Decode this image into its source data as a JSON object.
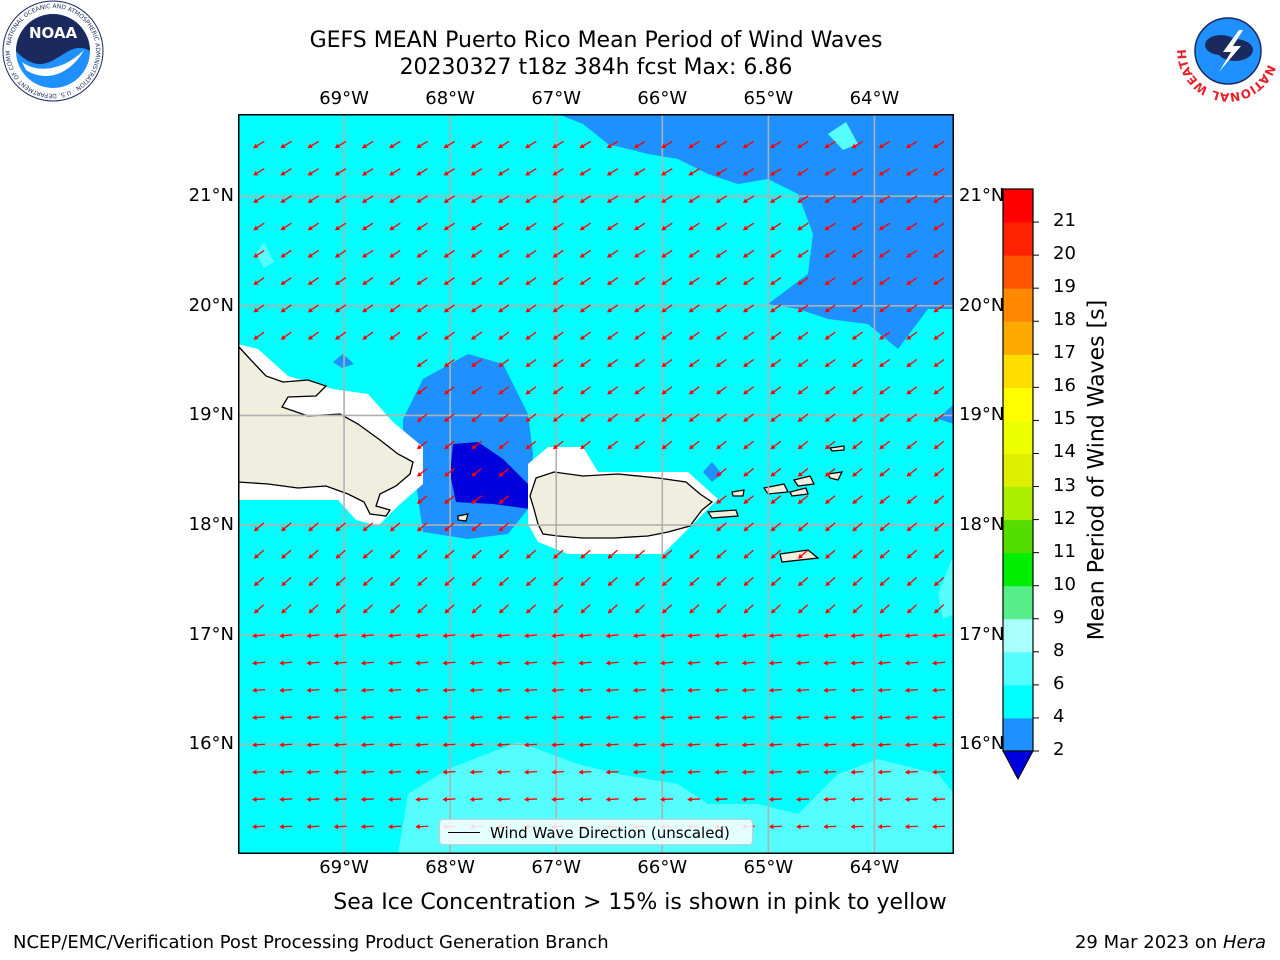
{
  "title": {
    "line1": "GEFS MEAN Puerto Rico Mean Period of Wind Waves",
    "line2": "20230327 t18z 384h fcst   Max: 6.86"
  },
  "logos": {
    "noaa": "NOAA",
    "nws": "NATIONAL WEATHER SERVICE"
  },
  "map": {
    "lon_range": [
      -70.0,
      -63.25
    ],
    "lat_range": [
      15.0,
      21.75
    ],
    "lon_ticks": [
      "69°W",
      "68°W",
      "67°W",
      "66°W",
      "65°W",
      "64°W"
    ],
    "lat_ticks": [
      "21°N",
      "20°N",
      "19°N",
      "18°N",
      "17°N",
      "16°N"
    ],
    "ocean_color": "#00ffff",
    "band_2_4_color": "#1e90ff",
    "band_lt2_color": "#0000dd",
    "band_6_8_color": "#55ffff",
    "land_color": "#f0eede",
    "arrow_color": "#ff0000"
  },
  "colorbar": {
    "label": "Mean Period of Wind Waves [s]",
    "ticks": [
      "2",
      "4",
      "6",
      "8",
      "9",
      "10",
      "11",
      "12",
      "13",
      "14",
      "15",
      "16",
      "17",
      "18",
      "19",
      "20",
      "21"
    ],
    "colors": [
      "#1e90ff",
      "#00ffff",
      "#55ffff",
      "#aaffff",
      "#55ee88",
      "#00ee00",
      "#55dd00",
      "#aaee00",
      "#ddee00",
      "#eeff00",
      "#ffff00",
      "#ffdd00",
      "#ffaa00",
      "#ff8800",
      "#ff5500",
      "#ff2200",
      "#ff0000"
    ],
    "extend_color": "#0000dd"
  },
  "legend": {
    "label": "Wind Wave Direction (unscaled)"
  },
  "note": "Sea Ice Concentration > 15% is shown in pink to yellow",
  "footer": {
    "left": "NCEP/EMC/Verification Post Processing Product Generation Branch",
    "right_prefix": "29 Mar 2023 on ",
    "right_host": "Hera"
  }
}
